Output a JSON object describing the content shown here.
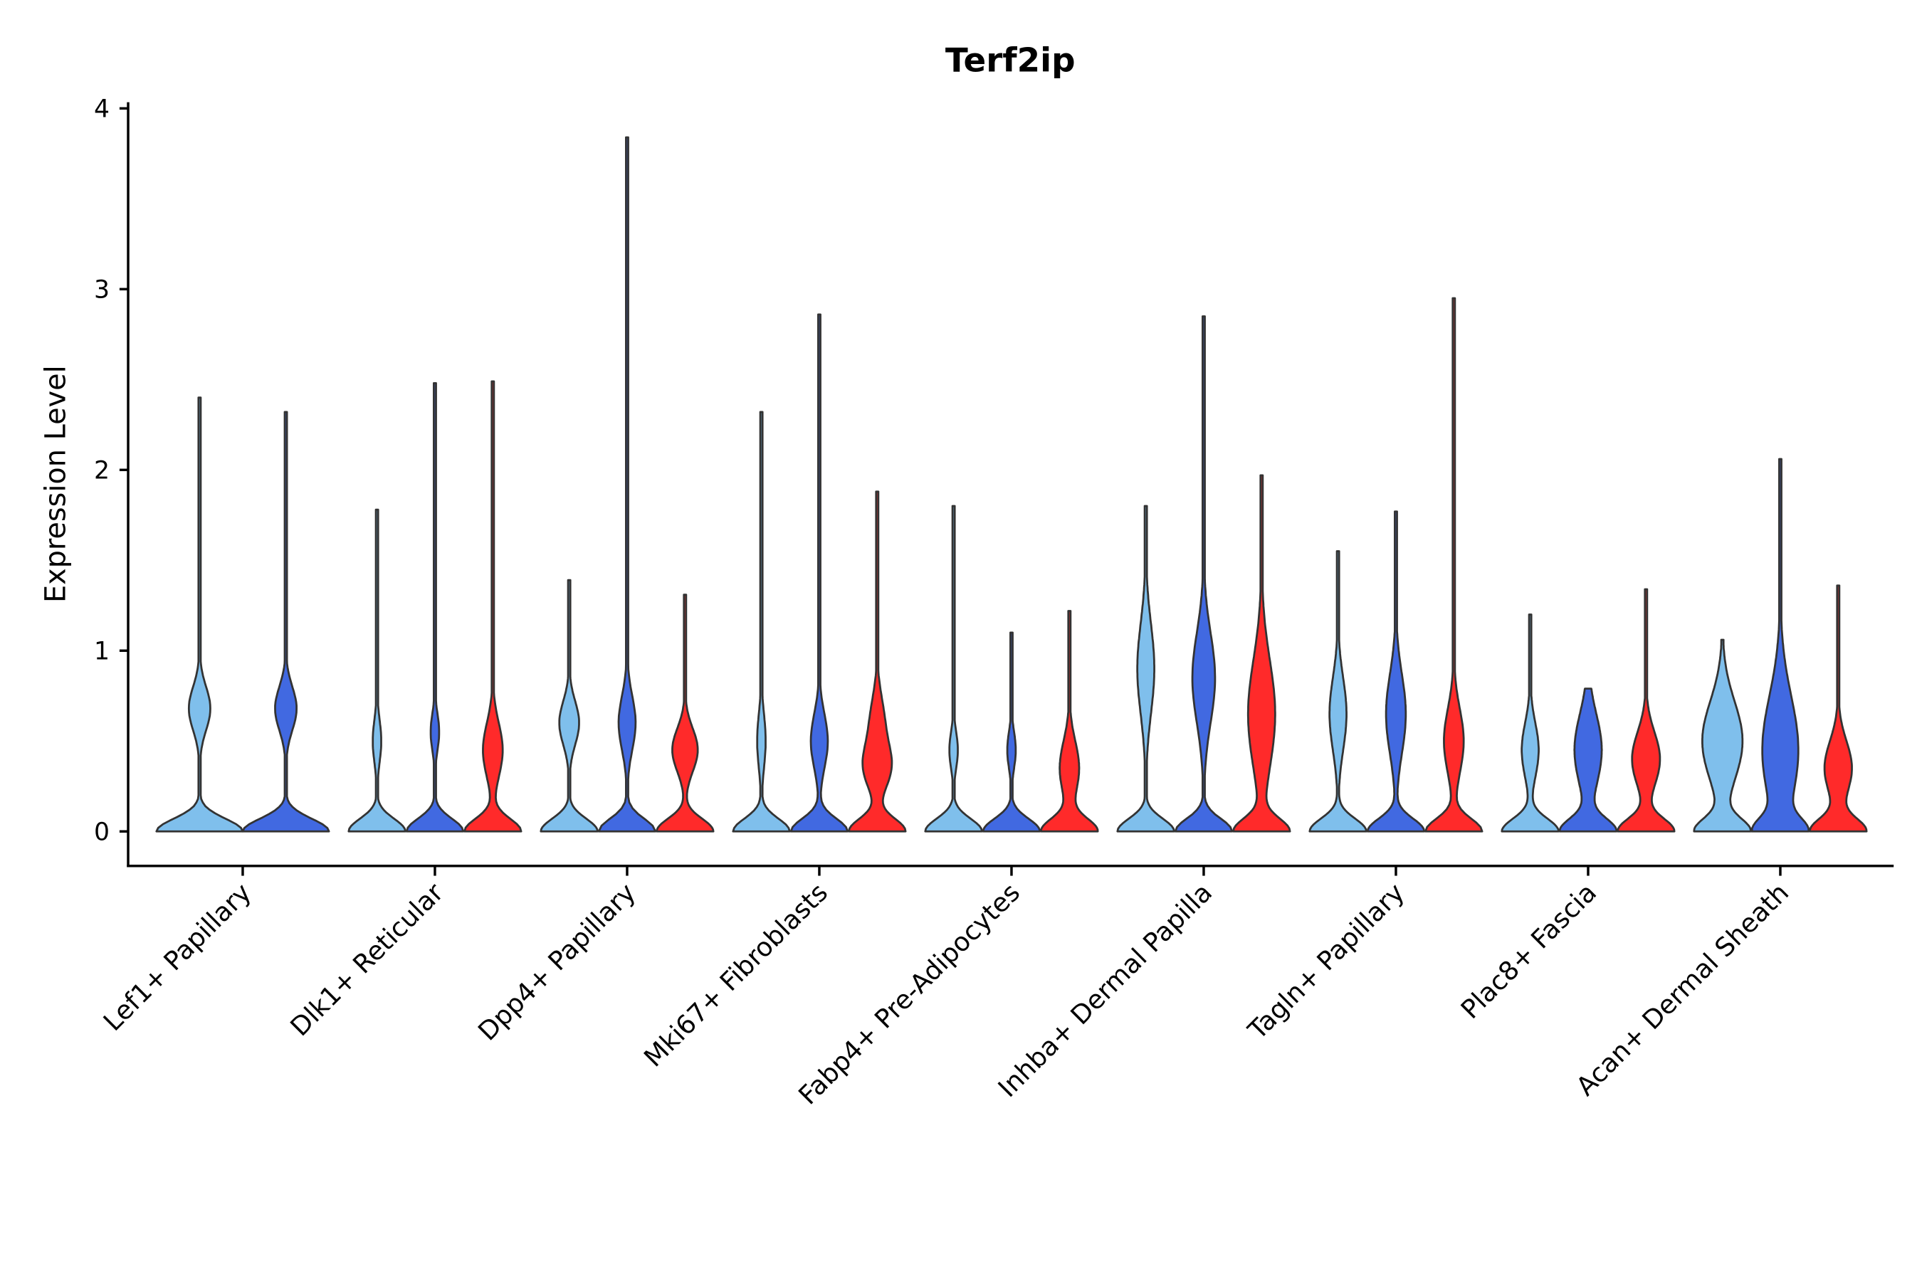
{
  "chart_data": {
    "type": "violin",
    "title": "Terf2ip",
    "xlabel": "",
    "ylabel": "Expression Level",
    "ylim": [
      -0.2,
      4.05
    ],
    "yticks": [
      0,
      1,
      2,
      3,
      4
    ],
    "ytick_labels": [
      "0",
      "1",
      "2",
      "3",
      "4"
    ],
    "colors": {
      "light": "#7fbfec",
      "blue": "#4169e1",
      "red": "#ff2a2a",
      "outline": "#333333"
    },
    "categories": [
      {
        "label": "Lef1+ Papillary",
        "violins": [
          {
            "color": "light",
            "max": 2.4,
            "modes": [
              [
                0.68,
                0.25,
                0.12
              ]
            ]
          },
          {
            "color": "blue",
            "max": 2.32,
            "modes": [
              [
                0.68,
                0.25,
                0.12
              ]
            ]
          }
        ]
      },
      {
        "label": "Dlk1+ Reticular",
        "violins": [
          {
            "color": "light",
            "max": 1.78,
            "modes": [
              [
                0.5,
                0.15,
                0.12
              ]
            ]
          },
          {
            "color": "blue",
            "max": 2.48,
            "modes": [
              [
                0.55,
                0.15,
                0.1
              ]
            ]
          },
          {
            "color": "red",
            "max": 2.49,
            "modes": [
              [
                0.45,
                0.35,
                0.15
              ]
            ]
          }
        ]
      },
      {
        "label": "Dpp4+ Papillary",
        "violins": [
          {
            "color": "light",
            "max": 1.39,
            "modes": [
              [
                0.6,
                0.35,
                0.12
              ]
            ]
          },
          {
            "color": "blue",
            "max": 3.84,
            "modes": [
              [
                0.6,
                0.3,
                0.15
              ]
            ]
          },
          {
            "color": "red",
            "max": 1.31,
            "modes": [
              [
                0.45,
                0.45,
                0.12
              ]
            ]
          }
        ]
      },
      {
        "label": "Mki67+ Fibroblasts",
        "violins": [
          {
            "color": "light",
            "max": 2.32,
            "modes": [
              [
                0.5,
                0.15,
                0.15
              ]
            ]
          },
          {
            "color": "blue",
            "max": 2.86,
            "modes": [
              [
                0.5,
                0.3,
                0.15
              ]
            ]
          },
          {
            "color": "red",
            "max": 1.88,
            "modes": [
              [
                0.35,
                0.45,
                0.12
              ],
              [
                0.6,
                0.25,
                0.15
              ]
            ]
          }
        ]
      },
      {
        "label": "Fabp4+ Pre-Adipocytes",
        "violins": [
          {
            "color": "light",
            "max": 1.8,
            "modes": [
              [
                0.45,
                0.15,
                0.1
              ]
            ]
          },
          {
            "color": "blue",
            "max": 1.1,
            "modes": [
              [
                0.45,
                0.15,
                0.1
              ]
            ]
          },
          {
            "color": "red",
            "max": 1.22,
            "modes": [
              [
                0.35,
                0.35,
                0.15
              ]
            ]
          }
        ]
      },
      {
        "label": "Inhba+ Dermal Papilla",
        "violins": [
          {
            "color": "light",
            "max": 1.8,
            "modes": [
              [
                0.9,
                0.3,
                0.25
              ]
            ]
          },
          {
            "color": "blue",
            "max": 2.85,
            "modes": [
              [
                0.85,
                0.4,
                0.25
              ]
            ]
          },
          {
            "color": "red",
            "max": 1.97,
            "modes": [
              [
                0.65,
                0.5,
                0.3
              ]
            ]
          }
        ]
      },
      {
        "label": "Tagln+ Papillary",
        "violins": [
          {
            "color": "light",
            "max": 1.55,
            "modes": [
              [
                0.65,
                0.3,
                0.2
              ]
            ]
          },
          {
            "color": "blue",
            "max": 1.77,
            "modes": [
              [
                0.65,
                0.35,
                0.22
              ]
            ]
          },
          {
            "color": "red",
            "max": 2.95,
            "modes": [
              [
                0.5,
                0.35,
                0.18
              ]
            ]
          }
        ]
      },
      {
        "label": "Plac8+ Fascia",
        "violins": [
          {
            "color": "light",
            "max": 1.2,
            "modes": [
              [
                0.45,
                0.3,
                0.15
              ]
            ]
          },
          {
            "color": "blue",
            "max": 0.79,
            "modes": [
              [
                0.45,
                0.5,
                0.2
              ]
            ]
          },
          {
            "color": "red",
            "max": 1.34,
            "modes": [
              [
                0.4,
                0.5,
                0.15
              ]
            ]
          }
        ]
      },
      {
        "label": "Acan+ Dermal Sheath",
        "violins": [
          {
            "color": "light",
            "max": 1.06,
            "modes": [
              [
                0.5,
                0.75,
                0.22
              ]
            ]
          },
          {
            "color": "blue",
            "max": 2.06,
            "modes": [
              [
                0.45,
                0.8,
                0.3
              ]
            ]
          },
          {
            "color": "red",
            "max": 1.36,
            "modes": [
              [
                0.35,
                0.5,
                0.15
              ]
            ]
          }
        ]
      }
    ]
  }
}
